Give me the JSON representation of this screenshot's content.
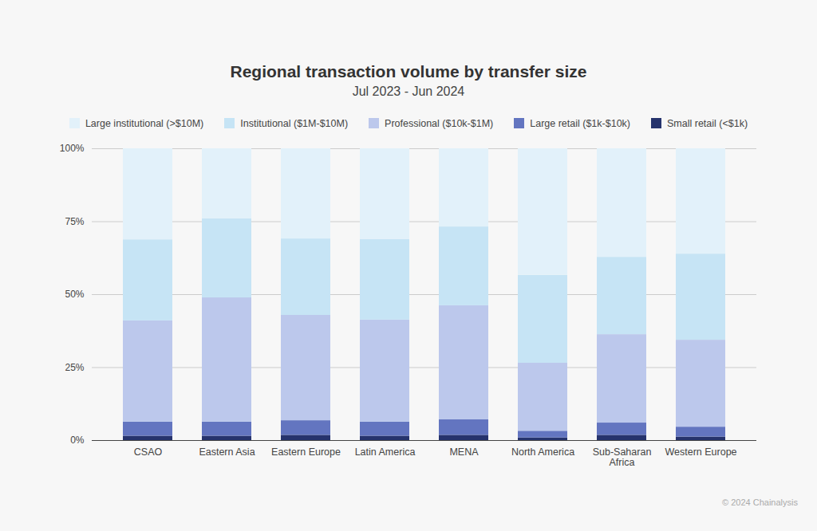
{
  "chart_data": {
    "type": "bar",
    "title": "Regional transaction volume by transfer size",
    "subtitle": "Jul 2023 - Jun 2024",
    "source": "© 2024 Chainalysis",
    "stacked": true,
    "grid": true,
    "legend": "top",
    "categories": [
      "CSAO",
      "Eastern Asia",
      "Eastern Europe",
      "Latin America",
      "MENA",
      "North America",
      "Sub-Saharan Africa",
      "Western Europe"
    ],
    "series": [
      {
        "name": "Large institutional (>$10M)",
        "color": "#e2f1fa",
        "values": [
          31.2,
          24.0,
          30.9,
          31.1,
          26.8,
          43.4,
          37.2,
          36.1
        ]
      },
      {
        "name": "Institutional ($1M-$10M)",
        "color": "#c6e4f5",
        "values": [
          27.8,
          27.1,
          26.2,
          27.6,
          27.0,
          30.1,
          26.5,
          29.5
        ]
      },
      {
        "name": "Professional ($10k-$1M)",
        "color": "#bcc8ec",
        "values": [
          34.7,
          42.6,
          36.1,
          35.0,
          39.1,
          23.3,
          30.3,
          29.8
        ]
      },
      {
        "name": "Large retail ($1k-$10k)",
        "color": "#6375c0",
        "values": [
          4.8,
          4.8,
          5.0,
          4.8,
          5.3,
          2.3,
          4.2,
          3.4
        ]
      },
      {
        "name": "Small retail (<$1k)",
        "color": "#26336d",
        "values": [
          1.5,
          1.5,
          1.8,
          1.5,
          1.8,
          0.9,
          1.8,
          1.2
        ]
      }
    ],
    "ylim": [
      0,
      100
    ],
    "yticks": [
      {
        "value": 0,
        "label": "0%"
      },
      {
        "value": 25,
        "label": "25%"
      },
      {
        "value": 50,
        "label": "50%"
      },
      {
        "value": 75,
        "label": "75%"
      },
      {
        "value": 100,
        "label": "100%"
      }
    ]
  }
}
